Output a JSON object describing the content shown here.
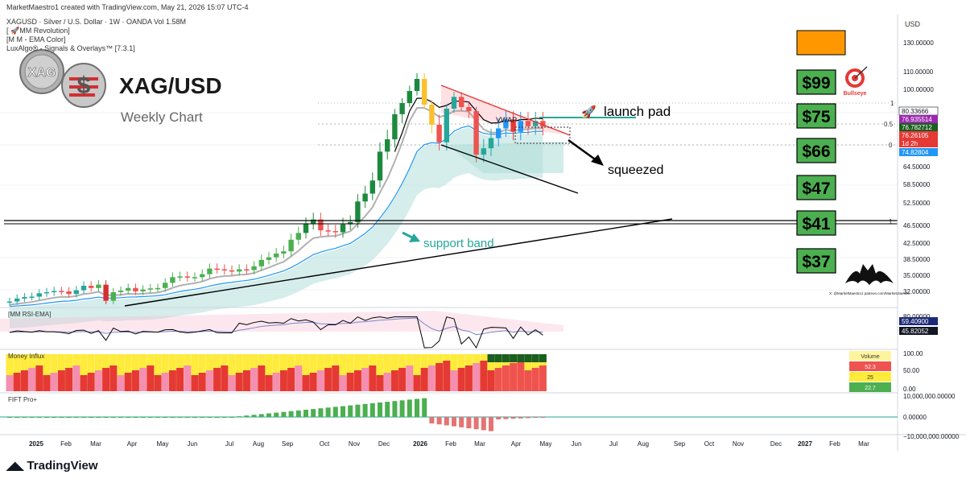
{
  "header": {
    "line1": "MarketMaestro1 created with TradingView.com, May 21, 2026 15:07 UTC-4",
    "line2": "XAGUSD · Silver / U.S. Dollar · 1W · OANDA  Vol 1.58M",
    "indicators": [
      "[ 🚀MM Revolution]",
      "[M M - EMA Color]",
      "LuxAlgo® - Signals & Overlays™ [7.3.1]"
    ],
    "currency": "USD"
  },
  "logo": {
    "title": "XAG/USD",
    "subtitle": "Weekly Chart",
    "badge": "XAG"
  },
  "annotations": {
    "vwap": "VWAP",
    "launch_pad": "launch pad",
    "squeezed": "squeezed",
    "support_band": "support band",
    "bullseye": "Bullseye",
    "bat_text": "X: @MarketMaestro1 patreon.com/MarketMaestro"
  },
  "targets": [
    "$99",
    "$75",
    "$66",
    "$47",
    "$41",
    "$37"
  ],
  "fib_labels": [
    "1",
    "0.5",
    "0",
    "1"
  ],
  "price_scale": [
    "130.00000",
    "110.00000",
    "100.00000",
    "64.50000",
    "58.50000",
    "52.50000",
    "46.50000",
    "42.50000",
    "38.50000",
    "35.00000",
    "32.00000"
  ],
  "price_tags": [
    {
      "text": "80.33666",
      "bg": "#ffffff",
      "fg": "#131722"
    },
    {
      "text": "76.935514",
      "bg": "#9c27b0",
      "fg": "#ffffff"
    },
    {
      "text": "76.782712",
      "bg": "#1b5e20",
      "fg": "#ffffff"
    },
    {
      "text": "76.26105",
      "bg": "#e53935",
      "fg": "#ffffff"
    },
    {
      "text": "1d 2h",
      "bg": "#e53935",
      "fg": "#ffffff"
    },
    {
      "text": "74.82804",
      "bg": "#2196f3",
      "fg": "#ffffff"
    }
  ],
  "panes": {
    "rsi": {
      "label": "[MM RSI-EMA]",
      "scale": [
        "80.00000"
      ],
      "tags": [
        {
          "text": "59.40900",
          "bg": "#1e2a78",
          "fg": "#ffffff"
        },
        {
          "text": "45.82052",
          "bg": "#131722",
          "fg": "#ffffff"
        }
      ]
    },
    "money": {
      "label": "Money Influx",
      "scale": [
        "100.00",
        "50.00",
        "0.00"
      ],
      "volume_title": "Volume",
      "volume_values": [
        "52.3",
        "25",
        "22.7"
      ]
    },
    "fift": {
      "label": "FIFT Pro+",
      "scale": [
        "10,000,000.00000",
        "0.00000",
        "−10,000,000.00000"
      ]
    }
  },
  "time_axis": [
    "2025",
    "Feb",
    "Mar",
    "Apr",
    "May",
    "Jun",
    "Jul",
    "Aug",
    "Sep",
    "Oct",
    "Nov",
    "Dec",
    "2026",
    "Feb",
    "Mar",
    "Apr",
    "May",
    "Jun",
    "Jul",
    "Aug",
    "Sep",
    "Oct",
    "Nov",
    "Dec",
    "2027",
    "Feb",
    "Mar"
  ],
  "footer": "TradingView",
  "colors": {
    "up": "#26a69a",
    "down": "#ef5350",
    "up_strong": "#1b8a3e",
    "down_strong": "#e53935",
    "target_box": "#4caf50",
    "orange_box": "#ff9800"
  },
  "chart_data": {
    "type": "candlestick",
    "title": "XAG/USD",
    "subtitle": "Weekly Chart",
    "timeframe": "1W",
    "currency": "USD",
    "x": [
      "2025-W01",
      "2025-W02",
      "2025-W03",
      "2025-W04",
      "2025-W05",
      "2025-W06",
      "2025-W07",
      "2025-W08",
      "2025-W09",
      "2025-W10",
      "2025-W11",
      "2025-W12",
      "2025-W13",
      "2025-W14",
      "2025-W15",
      "2025-W16",
      "2025-W17",
      "2025-W18",
      "2025-W19",
      "2025-W20",
      "2025-W21",
      "2025-W22",
      "2025-W23",
      "2025-W24",
      "2025-W25",
      "2025-W26",
      "2025-W27",
      "2025-W28",
      "2025-W29",
      "2025-W30",
      "2025-W31",
      "2025-W32",
      "2025-W33",
      "2025-W34",
      "2025-W35",
      "2025-W36",
      "2025-W37",
      "2025-W38",
      "2025-W39",
      "2025-W40",
      "2025-W41",
      "2025-W42",
      "2025-W43",
      "2025-W44",
      "2025-W45",
      "2025-W46",
      "2025-W47",
      "2025-W48",
      "2025-W49",
      "2025-W50",
      "2025-W51",
      "2025-W52",
      "2026-W01",
      "2026-W02",
      "2026-W03",
      "2026-W04",
      "2026-W05",
      "2026-W06",
      "2026-W07",
      "2026-W08",
      "2026-W09",
      "2026-W10",
      "2026-W11",
      "2026-W12",
      "2026-W13",
      "2026-W14",
      "2026-W15",
      "2026-W16",
      "2026-W17",
      "2026-W18",
      "2026-W19",
      "2026-W20",
      "2026-W21"
    ],
    "close": [
      29.6,
      30.4,
      30.8,
      30.9,
      31.8,
      32.1,
      32.4,
      32.3,
      31.6,
      32.6,
      33.8,
      33.2,
      34.1,
      29.8,
      32.1,
      32.5,
      33.2,
      32.3,
      32.8,
      33.1,
      33.2,
      34.6,
      36.1,
      36.3,
      36.0,
      36.1,
      36.9,
      38.4,
      38.2,
      37.9,
      37.6,
      38.2,
      38.0,
      39.0,
      40.7,
      41.4,
      42.4,
      43.0,
      46.1,
      47.9,
      50.3,
      51.5,
      48.6,
      48.4,
      48.1,
      50.2,
      50.8,
      56.3,
      58.4,
      61.9,
      69.6,
      72.9,
      79.6,
      86.0,
      93.5,
      101.0,
      85.0,
      76.8,
      72.1,
      82.5,
      89.8,
      83.5,
      81.0,
      68.8,
      70.5,
      73.2,
      75.8,
      78.2,
      74.9,
      77.8,
      76.4,
      77.8,
      76.3
    ],
    "ylim": [
      28,
      135
    ],
    "legend_values": {
      "vwap": "VWAP",
      "launch_pad": "launch pad",
      "squeezed": "squeezed",
      "support_band": "support band"
    },
    "targets": [
      99,
      75,
      66,
      47,
      41,
      37
    ]
  }
}
